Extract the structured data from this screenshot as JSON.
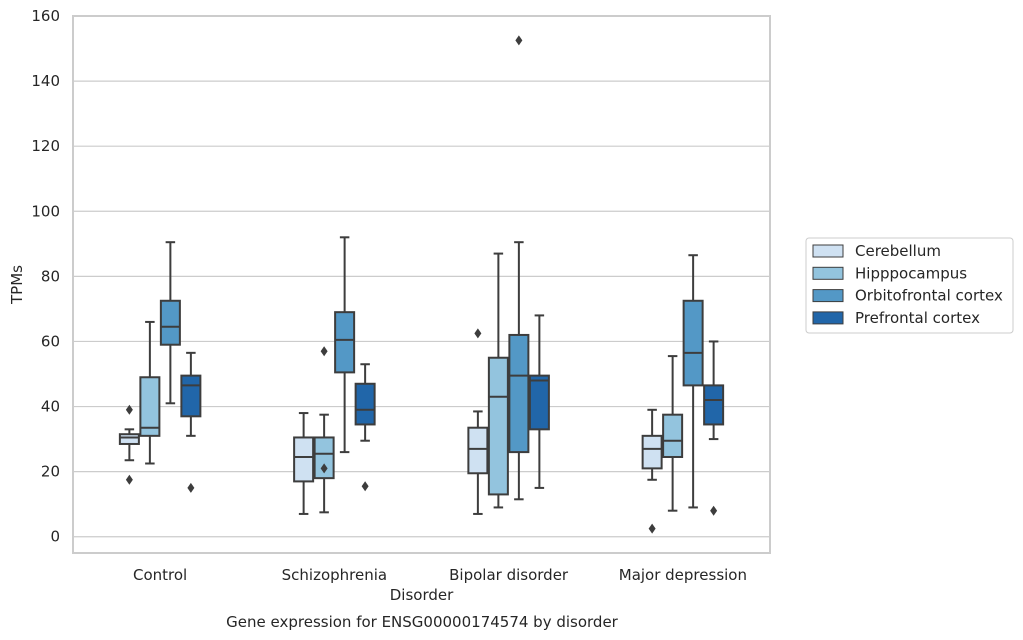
{
  "chart_data": {
    "type": "box",
    "title": "Gene expression for ENSG00000174574 by disorder",
    "xlabel": "Disorder",
    "ylabel": "TPMs",
    "ylim": [
      -5,
      160
    ],
    "yticks": [
      0,
      20,
      40,
      60,
      80,
      100,
      120,
      140,
      160
    ],
    "grid": "horizontal",
    "legend_position": "right",
    "categories": [
      "Control",
      "Schizophrenia",
      "Bipolar disorder",
      "Major depression"
    ],
    "series": [
      {
        "name": "Cerebellum",
        "color": "#cfe1f2",
        "boxes": [
          {
            "whislo": 23.5,
            "q1": 28.5,
            "med": 30.5,
            "q3": 31.5,
            "whishi": 33,
            "fliers": [
              39,
              17.5
            ]
          },
          {
            "whislo": 7,
            "q1": 17,
            "med": 24.5,
            "q3": 30.5,
            "whishi": 38,
            "fliers": []
          },
          {
            "whislo": 7,
            "q1": 19.5,
            "med": 27,
            "q3": 33.5,
            "whishi": 38.5,
            "fliers": [
              62.5
            ]
          },
          {
            "whislo": 17.5,
            "q1": 21,
            "med": 27,
            "q3": 31,
            "whishi": 39,
            "fliers": [
              2.5
            ]
          }
        ]
      },
      {
        "name": "Hipppocampus",
        "color": "#93c4de",
        "boxes": [
          {
            "whislo": 22.5,
            "q1": 31,
            "med": 33.5,
            "q3": 49,
            "whishi": 66,
            "fliers": []
          },
          {
            "whislo": 7.5,
            "q1": 18,
            "med": 25.5,
            "q3": 30.5,
            "whishi": 37.5,
            "fliers": [
              57,
              21
            ]
          },
          {
            "whislo": 9,
            "q1": 13,
            "med": 43,
            "q3": 55,
            "whishi": 87,
            "fliers": []
          },
          {
            "whislo": 8,
            "q1": 24.5,
            "med": 29.5,
            "q3": 37.5,
            "whishi": 55.5,
            "fliers": []
          }
        ]
      },
      {
        "name": "Orbitofrontal cortex",
        "color": "#5398c6",
        "boxes": [
          {
            "whislo": 41,
            "q1": 59,
            "med": 64.5,
            "q3": 72.5,
            "whishi": 90.5,
            "fliers": []
          },
          {
            "whislo": 26,
            "q1": 50.5,
            "med": 60.5,
            "q3": 69,
            "whishi": 92,
            "fliers": []
          },
          {
            "whislo": 11.5,
            "q1": 26,
            "med": 49.5,
            "q3": 62,
            "whishi": 90.5,
            "fliers": [
              152.5
            ]
          },
          {
            "whislo": 9,
            "q1": 46.5,
            "med": 56.5,
            "q3": 72.5,
            "whishi": 86.5,
            "fliers": []
          }
        ]
      },
      {
        "name": "Prefrontal cortex",
        "color": "#2166a9",
        "boxes": [
          {
            "whislo": 31,
            "q1": 37,
            "med": 46.5,
            "q3": 49.5,
            "whishi": 56.5,
            "fliers": [
              15
            ]
          },
          {
            "whislo": 29.5,
            "q1": 34.5,
            "med": 39,
            "q3": 47,
            "whishi": 53,
            "fliers": [
              15.5
            ]
          },
          {
            "whislo": 15,
            "q1": 33,
            "med": 48,
            "q3": 49.5,
            "whishi": 68,
            "fliers": []
          },
          {
            "whislo": 30,
            "q1": 34.5,
            "med": 42,
            "q3": 46.5,
            "whishi": 60,
            "fliers": [
              8
            ]
          }
        ]
      }
    ]
  }
}
